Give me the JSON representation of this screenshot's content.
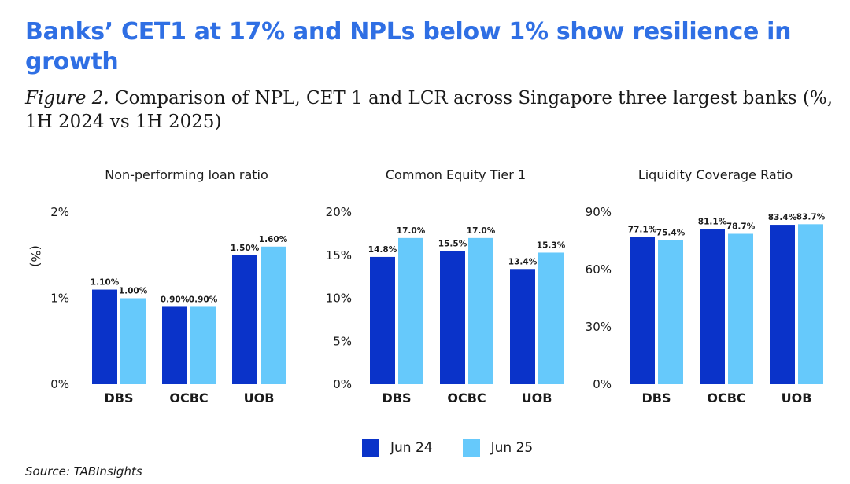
{
  "headline": "Banks’ CET1 at 17% and NPLs below 1% show resilience in growth",
  "subtitle": {
    "figure_label": "Figure 2.",
    "text": " Comparison of NPL, CET 1 and LCR across Singapore three largest banks (%, 1H 2024 vs 1H 2025)"
  },
  "source": "Source: TABInsights",
  "colors": {
    "jun24": "#0a33c9",
    "jun25": "#66c9fb"
  },
  "legend": [
    {
      "label": "Jun 24",
      "color": "#0a33c9"
    },
    {
      "label": "Jun 25",
      "color": "#66c9fb"
    }
  ],
  "chart_data": [
    {
      "type": "bar",
      "title": "Non-performing loan ratio",
      "ylabel": "(%)",
      "categories": [
        "DBS",
        "OCBC",
        "UOB"
      ],
      "ylim": [
        0,
        2
      ],
      "yticks": [
        0,
        1,
        2
      ],
      "ytick_labels": [
        "0%",
        "1%",
        "2%"
      ],
      "series": [
        {
          "name": "Jun 24",
          "values": [
            1.1,
            0.9,
            1.5
          ],
          "labels": [
            "1.10%",
            "0.90%",
            "1.50%"
          ]
        },
        {
          "name": "Jun 25",
          "values": [
            1.0,
            0.9,
            1.6
          ],
          "labels": [
            "1.00%",
            "0.90%",
            "1.60%"
          ]
        }
      ]
    },
    {
      "type": "bar",
      "title": "Common Equity Tier 1",
      "ylabel": "",
      "categories": [
        "DBS",
        "OCBC",
        "UOB"
      ],
      "ylim": [
        0,
        20
      ],
      "yticks": [
        0,
        5,
        10,
        15,
        20
      ],
      "ytick_labels": [
        "0%",
        "5%",
        "10%",
        "15%",
        "20%"
      ],
      "series": [
        {
          "name": "Jun 24",
          "values": [
            14.8,
            15.5,
            13.4
          ],
          "labels": [
            "14.8%",
            "15.5%",
            "13.4%"
          ]
        },
        {
          "name": "Jun 25",
          "values": [
            17.0,
            17.0,
            15.3
          ],
          "labels": [
            "17.0%",
            "17.0%",
            "15.3%"
          ]
        }
      ]
    },
    {
      "type": "bar",
      "title": "Liquidity Coverage Ratio",
      "ylabel": "",
      "categories": [
        "DBS",
        "OCBC",
        "UOB"
      ],
      "ylim": [
        0,
        90
      ],
      "yticks": [
        0,
        30,
        60,
        90
      ],
      "ytick_labels": [
        "0%",
        "30%",
        "60%",
        "90%"
      ],
      "series": [
        {
          "name": "Jun 24",
          "values": [
            77.1,
            81.1,
            83.4
          ],
          "labels": [
            "77.1%",
            "81.1%",
            "83.4%"
          ]
        },
        {
          "name": "Jun 25",
          "values": [
            75.4,
            78.7,
            83.7
          ],
          "labels": [
            "75.4%",
            "78.7%",
            "83.7%"
          ]
        }
      ]
    }
  ]
}
